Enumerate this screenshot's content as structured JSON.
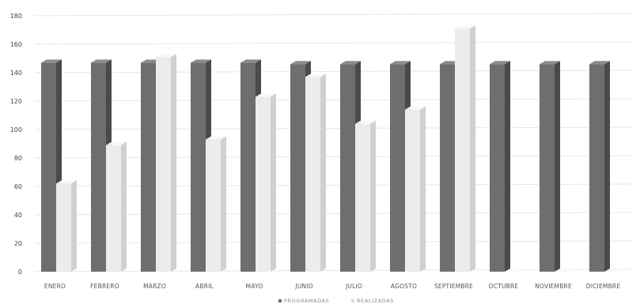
{
  "chart_data": {
    "type": "bar",
    "categories": [
      "ENERO",
      "FEBRERO",
      "MARZO",
      "ABRIL",
      "MAYO",
      "JUNIO",
      "JULIO",
      "AGOSTO",
      "SEPTIEMBRE",
      "OCTUBRE",
      "NOVIEMBRE",
      "DICIEMBRE"
    ],
    "series": [
      {
        "name": "PROGRAMADAS",
        "color": "#6e6e6e",
        "values": [
          147,
          147,
          147,
          147,
          147,
          146,
          146,
          146,
          146,
          146,
          146,
          146
        ]
      },
      {
        "name": "REALIZADAS",
        "color": "#eeeeee",
        "values": [
          62,
          89,
          151,
          93,
          123,
          137,
          104,
          114,
          171,
          0,
          0,
          0
        ]
      }
    ],
    "ylim": [
      0,
      180
    ],
    "yticks": [
      0,
      20,
      40,
      60,
      80,
      100,
      120,
      140,
      160,
      180
    ],
    "grid": true,
    "legend": "bottom",
    "title": "",
    "xlabel": "",
    "ylabel": ""
  }
}
